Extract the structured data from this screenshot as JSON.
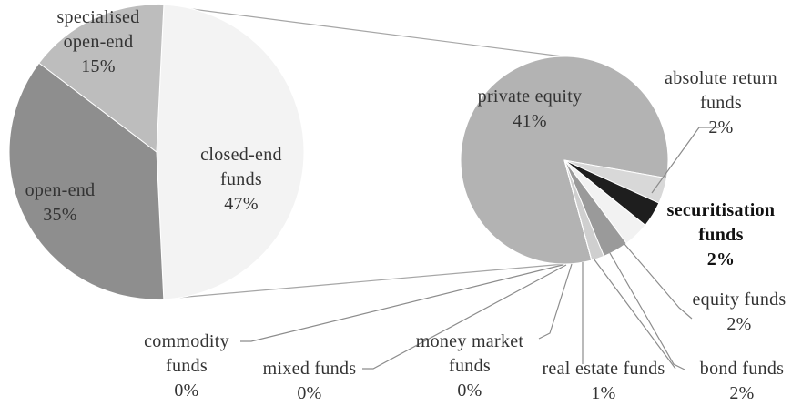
{
  "chart_data": [
    {
      "type": "pie",
      "categories": [
        "closed-end funds",
        "open-end",
        "specialised open-end"
      ],
      "values": [
        47,
        35,
        15
      ],
      "value_labels": [
        "47%",
        "35%",
        "15%"
      ],
      "colors": [
        "#f3f3f3",
        "#8e8e8e",
        "#bdbdbd"
      ]
    },
    {
      "type": "pie",
      "categories": [
        "private equity",
        "absolute return funds",
        "securitisation funds",
        "equity funds",
        "bond funds",
        "real estate funds",
        "money market funds",
        "mixed funds",
        "commodity funds"
      ],
      "values": [
        41,
        2,
        2,
        2,
        2,
        1,
        0,
        0,
        0
      ],
      "value_labels": [
        "41%",
        "2%",
        "2%",
        "2%",
        "2%",
        "1%",
        "0%",
        "0%",
        "0%"
      ],
      "colors": [
        "#b3b3b3",
        "#d8d8d8",
        "#1e1e1e",
        "#f2f2f2",
        "#9a9a9a",
        "#cfcfcf",
        "#7a7a7a",
        "#e6e6e6",
        "#a8a8a8"
      ]
    }
  ]
}
